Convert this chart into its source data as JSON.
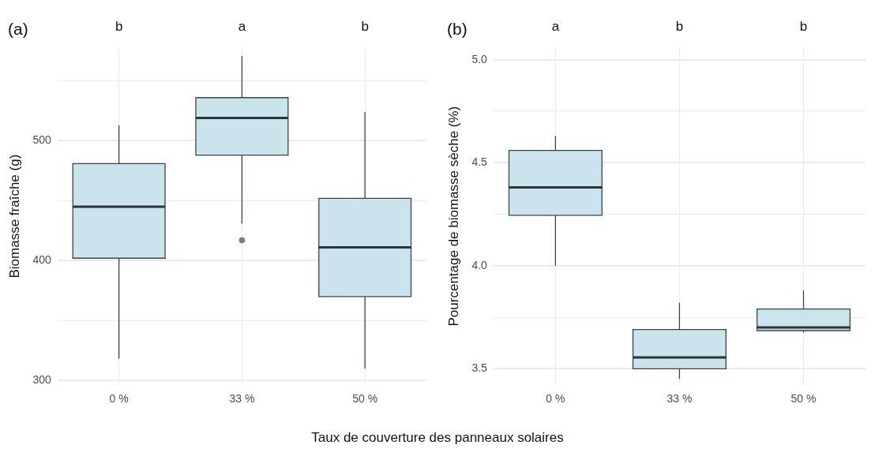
{
  "chart_data": [
    {
      "type": "box",
      "title": "(a)",
      "xlabel": "Taux de couverture des panneaux solaires",
      "ylabel": "Biomasse fraîche (g)",
      "categories": [
        "0 %",
        "33 %",
        "50 %"
      ],
      "series": [
        {
          "color": "#cae3ed",
          "boxes": [
            {
              "low": 318,
              "q1": 402,
              "median": 445,
              "q3": 481,
              "high": 513
            },
            {
              "low": 431,
              "q1": 488,
              "median": 519,
              "q3": 536,
              "high": 571,
              "outliers": [
                417
              ]
            },
            {
              "low": 310,
              "q1": 370,
              "median": 411,
              "q3": 452,
              "high": 524
            }
          ]
        }
      ],
      "ylim": [
        296,
        578
      ],
      "yticks": [
        300,
        {
          "value": 350,
          "label": null
        },
        400,
        {
          "value": 450,
          "label": null
        },
        500,
        {
          "value": 550,
          "label": null
        }
      ],
      "grid": true,
      "annotations": [
        "b",
        "a",
        "b"
      ]
    },
    {
      "type": "box",
      "title": "(b)",
      "ylabel": "Pourcentage de biomasse sèche (%)",
      "categories": [
        "0 %",
        "33 %",
        "50 %"
      ],
      "series": [
        {
          "color": "#cae3ed",
          "boxes": [
            {
              "low": 4.0,
              "q1": 4.245,
              "median": 4.38,
              "q3": 4.56,
              "high": 4.63
            },
            {
              "low": 3.45,
              "q1": 3.5,
              "median": 3.555,
              "q3": 3.69,
              "high": 3.82
            },
            {
              "low": 3.675,
              "q1": 3.685,
              "median": 3.7,
              "q3": 3.79,
              "high": 3.88
            }
          ]
        }
      ],
      "ylim": [
        3.42,
        5.06
      ],
      "yticks": [
        3.5,
        {
          "value": 3.75,
          "label": null
        },
        {
          "value": 4,
          "label": "4.0"
        },
        {
          "value": 4.25,
          "label": null
        },
        4.5,
        {
          "value": 4.75,
          "label": null
        },
        {
          "value": 5,
          "label": "5.0"
        }
      ],
      "grid": true,
      "annotations": [
        "a",
        "b",
        "b"
      ]
    }
  ]
}
